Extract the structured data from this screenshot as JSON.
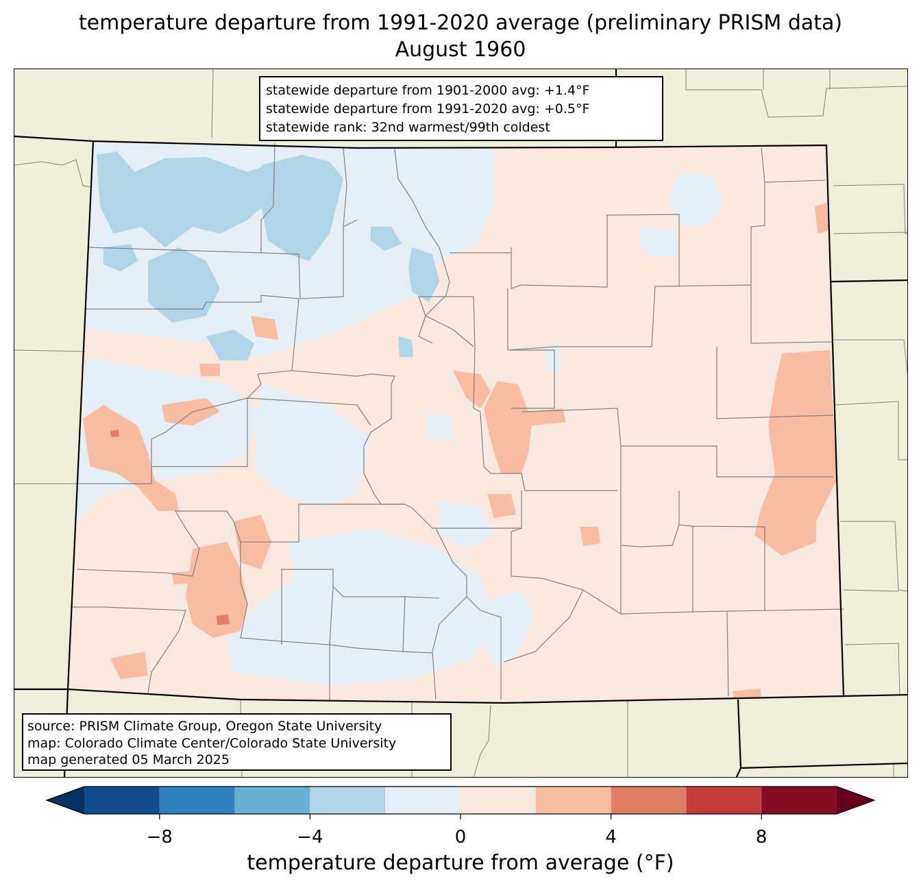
{
  "title": {
    "line1": "temperature departure from 1991-2020 average (preliminary PRISM data)",
    "line2": "August 1960"
  },
  "stats": {
    "line1": "statewide departure from 1901-2000 avg: +1.4°F",
    "line2": "statewide departure from 1991-2020 avg: +0.5°F",
    "line3": "statewide rank: 32nd warmest/99th coldest"
  },
  "source": {
    "line1": "source: PRISM Climate Group, Oregon State University",
    "line2": "map: Colorado Climate Center/Colorado State University",
    "line3": "map generated 05 March 2025"
  },
  "colorbar": {
    "label": "temperature departure from average (°F)",
    "ticks": [
      "−8",
      "−4",
      "0",
      "4",
      "8"
    ],
    "tick_values": [
      -8,
      -4,
      0,
      4,
      8
    ],
    "min": -10,
    "max": 10,
    "step": 2,
    "extend": "both",
    "under_color": "#053061",
    "over_color": "#67001f",
    "bin_colors": [
      "#124c8a",
      "#3080bc",
      "#6aaed4",
      "#b0d5e8",
      "#e6eef5",
      "#f9e8e0",
      "#f8bca2",
      "#e37e66",
      "#c23c3c",
      "#880c27"
    ]
  },
  "map_colors": {
    "background": "#efeedb",
    "state_fill": "#f9e8e0",
    "cool_light": "#e6eef5",
    "cool": "#b0d5e8",
    "warm": "#f8bca2",
    "warm_dark": "#e37e66",
    "county_lines": "#808080",
    "state_lines": "#000000"
  }
}
